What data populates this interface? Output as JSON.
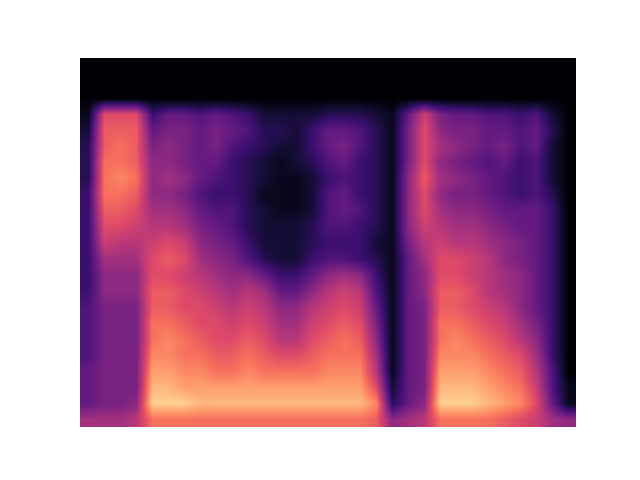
{
  "chart_data": {
    "type": "heatmap",
    "color": "magma",
    "tick_labels": false,
    "xlim": [
      -0.5,
      30.5
    ],
    "ylim": [
      -0.5,
      22.5
    ],
    "zlim": [
      0,
      10
    ],
    "x": [
      0,
      1,
      2,
      3,
      4,
      5,
      6,
      7,
      8,
      9,
      10,
      11,
      12,
      13,
      14,
      15,
      16,
      17,
      18,
      19,
      20,
      21,
      22,
      23,
      24,
      25,
      26,
      27,
      28,
      29,
      30
    ],
    "y": [
      0,
      1,
      2,
      3,
      4,
      5,
      6,
      7,
      8,
      9,
      10,
      11,
      12,
      13,
      14,
      15,
      16,
      17,
      18,
      19,
      20,
      21,
      22
    ],
    "z": [
      [
        4.5,
        4.5,
        4.5,
        5,
        7,
        7,
        7,
        7,
        7,
        7,
        7,
        7,
        7,
        7,
        7,
        7,
        7,
        7,
        6.5,
        4,
        4.5,
        5,
        7,
        7,
        7,
        7,
        6.5,
        6,
        5.5,
        4.5,
        4
      ],
      [
        3,
        3.5,
        3.5,
        4,
        9,
        9,
        9,
        8.5,
        8.5,
        8.5,
        8.5,
        8.5,
        8.5,
        8.5,
        8.5,
        8.5,
        8.5,
        8.5,
        7.5,
        1.5,
        3,
        4,
        9,
        9,
        9,
        8.5,
        8,
        7.5,
        6,
        3,
        0.5
      ],
      [
        3,
        3.5,
        3.5,
        3.5,
        8.5,
        8.5,
        8,
        8,
        8,
        8,
        8,
        8,
        8,
        8,
        8,
        8,
        8,
        8,
        6,
        1,
        3,
        3.5,
        8.5,
        8.5,
        8.5,
        8,
        7.5,
        7,
        5.5,
        2.5,
        0.5
      ],
      [
        3,
        3.5,
        3.5,
        3.5,
        8,
        8,
        7.5,
        7.5,
        7,
        7,
        7.5,
        7,
        7,
        7,
        7,
        7.5,
        7.5,
        7.5,
        5,
        0.5,
        3,
        3.5,
        8,
        8,
        8,
        7.5,
        7,
        6.5,
        5,
        2.5,
        0
      ],
      [
        2.5,
        3.5,
        3.5,
        3.5,
        7.5,
        7.5,
        7,
        7,
        6.5,
        6.5,
        7,
        6.5,
        6,
        6,
        6.5,
        7,
        7,
        7,
        4.5,
        0.5,
        3,
        3.5,
        7.5,
        7.5,
        7.5,
        7,
        6.5,
        6,
        4.5,
        2,
        0
      ],
      [
        2.5,
        3.5,
        3.5,
        3.5,
        7,
        7.5,
        7,
        6.5,
        6,
        6,
        6.5,
        6,
        5,
        5,
        6,
        6.5,
        7,
        6.5,
        4,
        0.5,
        3,
        3.5,
        7,
        7.5,
        7,
        6.5,
        6,
        5,
        4,
        2,
        0
      ],
      [
        2.5,
        3.5,
        3.5,
        3.5,
        7,
        7,
        6.5,
        6,
        6,
        5.5,
        6,
        5.5,
        4.5,
        4.5,
        5.5,
        6,
        6.5,
        6,
        3.5,
        0.5,
        3,
        3.5,
        7,
        7,
        6.5,
        6,
        5.5,
        4.5,
        3.5,
        2,
        0
      ],
      [
        2.5,
        3.5,
        3.5,
        3.5,
        6.5,
        6.5,
        6,
        6,
        5.5,
        5,
        5.5,
        5,
        4,
        4,
        5,
        5.5,
        6,
        5.5,
        3,
        0.5,
        3,
        3.5,
        6.5,
        6.5,
        6,
        5.5,
        5,
        4,
        3,
        2,
        0
      ],
      [
        2,
        4,
        4,
        4,
        6.5,
        6.5,
        6,
        5.5,
        5,
        4.5,
        5,
        4.5,
        3,
        3,
        4,
        5,
        5.5,
        5,
        2.5,
        0.5,
        3,
        4,
        6.5,
        6.5,
        6,
        5,
        4.5,
        4,
        3,
        2,
        0
      ],
      [
        2,
        4,
        4,
        4,
        6,
        6,
        5.5,
        5,
        4.5,
        4,
        4,
        3,
        2,
        2,
        3,
        4,
        4.5,
        4,
        2,
        0.5,
        3,
        4,
        6,
        6,
        5.5,
        5,
        4.5,
        4,
        3,
        2,
        0
      ],
      [
        2,
        4.5,
        4.5,
        4.5,
        6,
        6.5,
        6,
        4.5,
        4,
        3.5,
        2.5,
        1.5,
        1,
        1,
        2,
        2.5,
        2.5,
        2,
        1.5,
        0.5,
        3,
        4.5,
        6,
        6,
        5.5,
        5,
        4,
        3.5,
        3,
        2,
        0
      ],
      [
        2,
        5.5,
        5,
        5,
        5.5,
        6,
        5.5,
        4,
        3.5,
        3,
        2,
        1,
        1,
        1,
        1.5,
        2,
        2,
        2,
        1,
        0.5,
        3.5,
        5,
        5.5,
        5,
        5,
        4.5,
        4,
        3.5,
        3,
        2,
        0
      ],
      [
        2,
        6,
        6,
        5.5,
        5,
        5,
        4.5,
        3.5,
        3,
        2.5,
        1.5,
        1,
        1,
        1,
        1.5,
        2.5,
        2.5,
        2,
        1.5,
        0.5,
        4,
        5.5,
        5,
        4.5,
        4.5,
        4,
        3.5,
        3,
        3,
        2,
        0
      ],
      [
        2,
        6.5,
        6.5,
        6,
        4.5,
        4.5,
        4,
        3,
        2.5,
        2.5,
        1.5,
        1,
        0.5,
        0.5,
        1,
        2.5,
        3,
        2.5,
        1.5,
        0.5,
        4,
        6,
        4.5,
        4,
        4,
        3.5,
        3,
        3,
        3,
        2,
        0
      ],
      [
        2,
        7,
        7,
        6.5,
        4,
        4,
        3.5,
        2.5,
        2,
        2,
        1.5,
        0.5,
        0.5,
        0.5,
        1,
        2.5,
        3,
        2,
        1.5,
        0.5,
        4,
        6,
        4,
        3.5,
        3.5,
        3,
        2.5,
        2,
        2.5,
        1.5,
        0
      ],
      [
        1.5,
        7,
        7.5,
        7,
        4,
        4.5,
        4,
        3,
        2.5,
        2,
        1.5,
        1,
        0.5,
        0.5,
        1,
        2,
        2.5,
        2,
        1.5,
        0.5,
        4,
        6.5,
        4.5,
        4,
        3.5,
        3,
        2.5,
        2,
        2.5,
        1,
        0
      ],
      [
        1.5,
        7,
        7,
        6.5,
        4,
        4,
        3.5,
        3,
        3,
        2,
        1.5,
        1,
        0.5,
        1,
        1.5,
        2.5,
        3,
        2,
        1.5,
        0.5,
        3.5,
        6,
        4,
        3.5,
        3,
        2.5,
        3,
        2,
        2.5,
        1,
        0
      ],
      [
        1.5,
        6.5,
        7,
        6.5,
        3.5,
        4,
        3.5,
        3,
        3.5,
        2.5,
        2,
        1.5,
        1,
        1,
        2,
        3,
        3.5,
        2.5,
        1.5,
        0.5,
        3.5,
        6,
        4.5,
        4,
        3.5,
        3,
        3.5,
        2.5,
        3,
        1,
        0
      ],
      [
        1,
        6.5,
        6.5,
        6.5,
        3,
        3.5,
        3.5,
        3,
        3.5,
        3,
        2.5,
        1.5,
        1.5,
        1,
        2,
        3,
        3,
        2.5,
        1.5,
        0.5,
        3.5,
        6,
        4,
        3.5,
        3.5,
        3,
        3,
        2.5,
        3,
        1.5,
        0
      ],
      [
        0.5,
        6,
        6,
        6,
        2,
        3,
        3,
        2.5,
        3,
        2.5,
        2,
        1,
        1,
        1,
        1,
        1.5,
        1.5,
        1.5,
        1,
        0.5,
        3,
        5.5,
        3.5,
        3,
        3,
        2.5,
        2.5,
        2,
        2.5,
        1,
        0
      ],
      [
        0,
        0,
        0,
        0,
        0,
        0,
        0,
        0,
        0,
        0,
        0,
        0,
        0,
        0,
        0,
        0,
        0,
        0,
        0,
        0,
        0,
        0,
        0,
        0,
        0,
        0,
        0,
        0,
        0,
        0,
        0
      ],
      [
        0,
        0,
        0,
        0,
        0,
        0,
        0,
        0,
        0,
        0,
        0,
        0,
        0,
        0,
        0,
        0,
        0,
        0,
        0,
        0,
        0,
        0,
        0,
        0,
        0,
        0,
        0,
        0,
        0,
        0,
        0
      ],
      [
        0,
        0,
        0,
        0,
        0,
        0,
        0,
        0,
        0,
        0,
        0,
        0,
        0,
        0,
        0,
        0,
        0,
        0,
        0,
        0,
        0,
        0,
        0,
        0,
        0,
        0,
        0,
        0,
        0,
        0,
        0
      ]
    ]
  }
}
